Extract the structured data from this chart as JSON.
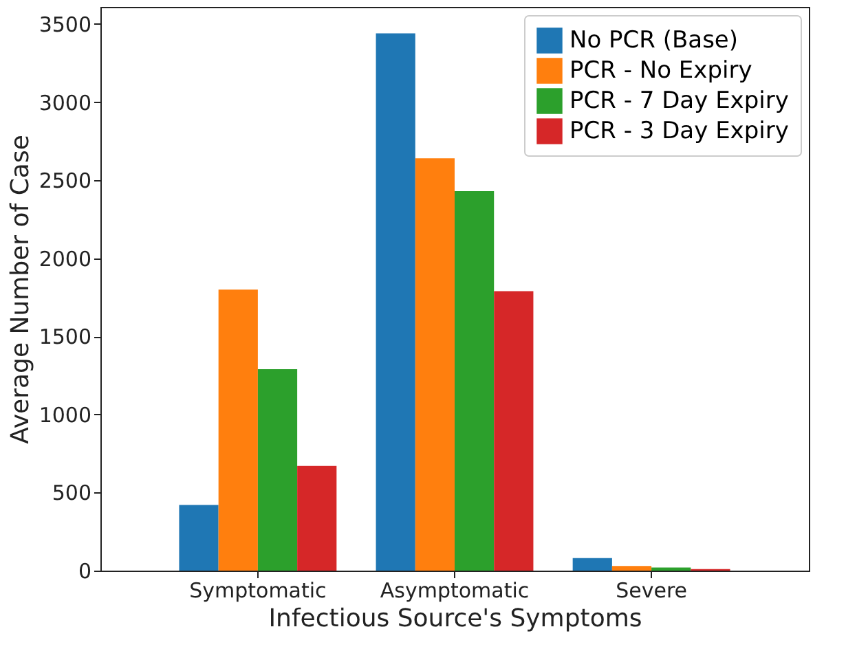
{
  "chart_data": {
    "type": "bar",
    "xlabel": "Infectious Source's Symptoms",
    "ylabel": "Average Number of Case",
    "categories": [
      "Symptomatic",
      "Asymptomatic",
      "Severe"
    ],
    "series": [
      {
        "name": "No PCR (Base)",
        "color": "#1f77b4",
        "values": [
          420,
          3440,
          80
        ]
      },
      {
        "name": "PCR - No Expiry",
        "color": "#ff7f0e",
        "values": [
          1800,
          2640,
          30
        ]
      },
      {
        "name": "PCR - 7 Day Expiry",
        "color": "#2ca02c",
        "values": [
          1290,
          2430,
          20
        ]
      },
      {
        "name": "PCR - 3 Day Expiry",
        "color": "#d62728",
        "values": [
          670,
          1790,
          10
        ]
      }
    ],
    "ylim": [
      0,
      3610
    ],
    "yticks": [
      0,
      500,
      1000,
      1500,
      2000,
      2500,
      3000,
      3500
    ],
    "grid": false,
    "legend": "top right"
  }
}
